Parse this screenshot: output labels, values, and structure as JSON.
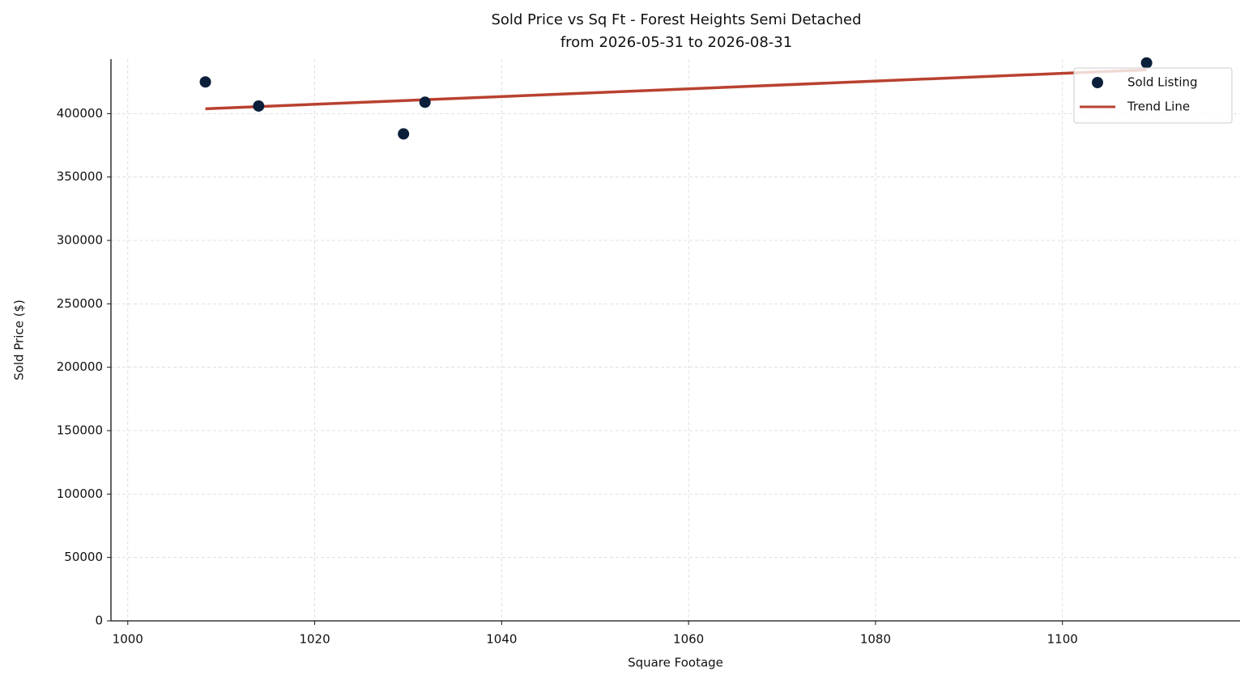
{
  "chart_data": {
    "type": "scatter",
    "title": "Sold Price vs Sq Ft - Forest Heights Semi Detached",
    "subtitle": "from 2026-05-31 to 2026-08-31",
    "x_label": "Square Footage",
    "y_label": "Sold Price ($)",
    "xlim": [
      998.2,
      1119
    ],
    "xticks": [
      1000,
      1020,
      1040,
      1060,
      1080,
      1100
    ],
    "ylim": [
      0,
      443000
    ],
    "yticks": [
      0,
      50000,
      100000,
      150000,
      200000,
      250000,
      300000,
      350000,
      400000
    ],
    "grid": true,
    "legend": "upper right",
    "series": [
      {
        "name": "Sold Listing",
        "type": "scatter",
        "color": "#0b1f3a",
        "x": [
          1008.3,
          1014,
          1029.5,
          1031.8,
          1109
        ],
        "values": [
          425000,
          406000,
          384000,
          409000,
          440000
        ]
      },
      {
        "name": "Trend Line",
        "type": "line",
        "color": "#b94130",
        "x": [
          1008.3,
          1109
        ],
        "values": [
          403800,
          434500
        ]
      }
    ]
  }
}
